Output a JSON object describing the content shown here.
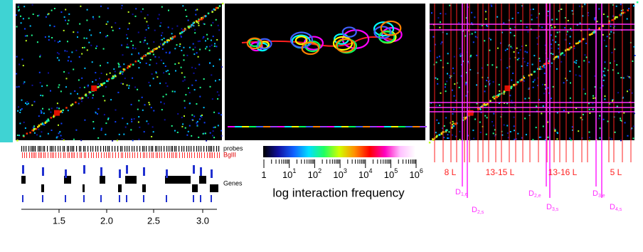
{
  "left": {
    "labels": {
      "probes": "probes",
      "bglii": "BglII",
      "genes": "Genes"
    },
    "axis_ticks": [
      "1.5",
      "2.0",
      "2.5",
      "3.0"
    ]
  },
  "colorbar": {
    "ticks": [
      {
        "base": "1"
      },
      {
        "base": "10",
        "exp": "1"
      },
      {
        "base": "10",
        "exp": "2"
      },
      {
        "base": "10",
        "exp": "3"
      },
      {
        "base": "10",
        "exp": "4"
      },
      {
        "base": "10",
        "exp": "5"
      },
      {
        "base": "10",
        "exp": "6"
      }
    ],
    "label": "log interaction frequency"
  },
  "right": {
    "regions": [
      "8 L",
      "13-15 L",
      "13-16 L",
      "5 L"
    ],
    "domains": [
      {
        "main": "D",
        "sub": "1,e"
      },
      {
        "main": "D",
        "sub": "2,s"
      },
      {
        "main": "D",
        "sub": "2,e"
      },
      {
        "main": "D",
        "sub": "3,s"
      },
      {
        "main": "D",
        "sub": "3,e"
      },
      {
        "main": "D",
        "sub": "4,s"
      }
    ]
  }
}
